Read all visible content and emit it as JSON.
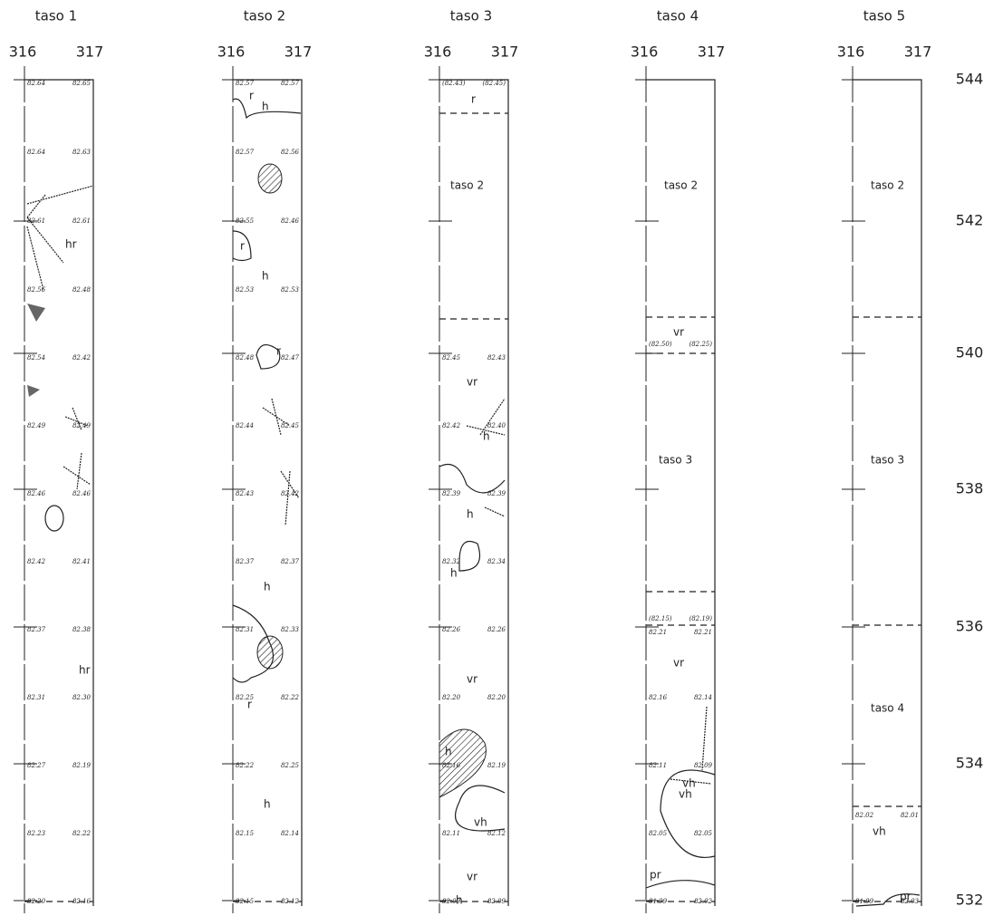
{
  "columns": [
    {
      "title": "taso 1",
      "axis": [
        "316",
        "317"
      ],
      "elevations": [
        [
          "82.64",
          "82.65"
        ],
        [
          "82.64",
          "82.63"
        ],
        [
          "82.61",
          "82.61"
        ],
        [
          "82.56",
          "82.48"
        ],
        [
          "82.54",
          "82.42"
        ],
        [
          "82.49",
          "82.49"
        ],
        [
          "82.46",
          "82.46"
        ],
        [
          "82.42",
          "82.41"
        ],
        [
          "82.37",
          "82.38"
        ],
        [
          "82.31",
          "82.30"
        ],
        [
          "82.27",
          "82.19"
        ],
        [
          "82.23",
          "82.22"
        ],
        [
          "82.20",
          "82.16"
        ]
      ],
      "labels": [
        "hr",
        "hr"
      ]
    },
    {
      "title": "taso 2",
      "axis": [
        "316",
        "317"
      ],
      "elevations": [
        [
          "82.57",
          "82.57"
        ],
        [
          "82.57",
          "82.56"
        ],
        [
          "82.55",
          "82.46"
        ],
        [
          "82.53",
          "82.53"
        ],
        [
          "82.48",
          "82.47"
        ],
        [
          "82.44",
          "82.45"
        ],
        [
          "82.43",
          "82.42"
        ],
        [
          "82.37",
          "82.37"
        ],
        [
          "82.31",
          "82.33"
        ],
        [
          "82.25",
          "82.22"
        ],
        [
          "82.22",
          "82.25"
        ],
        [
          "82.15",
          "82.14"
        ],
        [
          "82.15",
          "82.12"
        ]
      ],
      "labels": [
        "r",
        "h",
        "r",
        "h",
        "r",
        "h",
        "r",
        "h"
      ]
    },
    {
      "title": "taso 3",
      "axis": [
        "316",
        "317"
      ],
      "elevations": [
        [
          "(82.43)",
          "(82.45)"
        ],
        [
          "82.45",
          "82.43"
        ],
        [
          "82.42",
          "82.40"
        ],
        [
          "82.39",
          "82.39"
        ],
        [
          "82.32",
          "82.34"
        ],
        [
          "82.26",
          "82.26"
        ],
        [
          "82.20",
          "82.20"
        ],
        [
          "82.16",
          "82.19"
        ],
        [
          "82.11",
          "82.12"
        ],
        [
          "82.09",
          "82.09"
        ]
      ],
      "labels": [
        "r",
        "taso 2",
        "vr",
        "h",
        "h",
        "h",
        "vr",
        "h",
        "vh",
        "vr",
        "h"
      ]
    },
    {
      "title": "taso 4",
      "axis": [
        "316",
        "317"
      ],
      "elevations": [
        [
          "(82.50)",
          "(82.25)"
        ],
        [
          "(82.15)",
          "(82.19)"
        ],
        [
          "82.21",
          "82.21"
        ],
        [
          "82.16",
          "82.14"
        ],
        [
          "82.11",
          "82.09"
        ],
        [
          "82.05",
          "82.05"
        ],
        [
          "81.99",
          "82.02"
        ]
      ],
      "labels": [
        "taso 2",
        "vr",
        "taso 3",
        "vr",
        "vh",
        "vh",
        "pr"
      ]
    },
    {
      "title": "taso 5",
      "axis": [
        "316",
        "317"
      ],
      "elevations": [
        [
          "82.02",
          "82.01"
        ],
        [
          "81.99",
          "82.03"
        ]
      ],
      "labels": [
        "taso 2",
        "taso 3",
        "taso 4",
        "vh",
        "pr"
      ]
    }
  ],
  "row_labels": [
    "544",
    "542",
    "540",
    "538",
    "536",
    "534",
    "532"
  ]
}
